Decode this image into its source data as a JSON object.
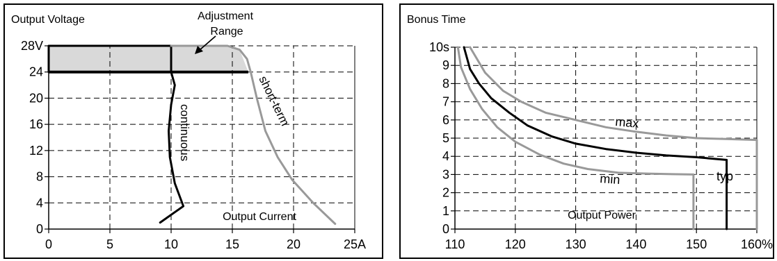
{
  "chart_data": [
    {
      "type": "line",
      "title": "Output Voltage",
      "xlabel": "Output Current",
      "ylabel": "Output Voltage",
      "xlim": [
        0,
        25
      ],
      "ylim": [
        0,
        28
      ],
      "x_ticks": [
        0,
        5,
        10,
        15,
        20,
        25
      ],
      "x_tick_labels": [
        "0",
        "5",
        "10",
        "15",
        "20",
        "25A"
      ],
      "y_ticks": [
        0,
        4,
        8,
        12,
        16,
        20,
        24,
        28
      ],
      "y_tick_labels": [
        "0",
        "4",
        "8",
        "12",
        "16",
        "20",
        "24",
        "28V"
      ],
      "grid": true,
      "annotations": [
        "Adjustment",
        "Range"
      ],
      "series": [
        {
          "name": "continuous",
          "color": "#000000",
          "points": [
            [
              0,
              24
            ],
            [
              10,
              24
            ],
            [
              10,
              28
            ],
            [
              0,
              28
            ],
            [
              0,
              24
            ],
            [
              10,
              24
            ],
            [
              10.3,
              22
            ],
            [
              10.0,
              19
            ],
            [
              9.8,
              15
            ],
            [
              9.9,
              11
            ],
            [
              10.3,
              7
            ],
            [
              11.0,
              3.5
            ],
            [
              9.1,
              1.0
            ]
          ]
        },
        {
          "name": "short-term",
          "color": "#999999",
          "points": [
            [
              10,
              28
            ],
            [
              14.6,
              28
            ],
            [
              15.6,
              27.4
            ],
            [
              16.2,
              26
            ],
            [
              16.5,
              24
            ],
            [
              17.0,
              20
            ],
            [
              17.7,
              15
            ],
            [
              18.7,
              11
            ],
            [
              19.9,
              7.5
            ],
            [
              21.6,
              4
            ],
            [
              23.4,
              0.8
            ]
          ]
        }
      ],
      "shaded_region": {
        "name": "Adjustment Range",
        "color": "#d9d9d9",
        "y_range": [
          24,
          28
        ],
        "x_max": 16.3
      },
      "shaded_points": [
        [
          0,
          24
        ],
        [
          16.3,
          24
        ],
        [
          15.6,
          27.4
        ],
        [
          14.6,
          28
        ],
        [
          0,
          28
        ]
      ],
      "bold_line": {
        "points": [
          [
            0,
            24
          ],
          [
            16.3,
            24
          ]
        ]
      }
    },
    {
      "type": "line",
      "title": "Bonus Time",
      "xlabel": "Output Power",
      "ylabel": "Bonus Time",
      "xlim": [
        110,
        160
      ],
      "ylim": [
        0,
        10
      ],
      "x_ticks": [
        110,
        120,
        130,
        140,
        150,
        160
      ],
      "x_tick_labels": [
        "110",
        "120",
        "130",
        "140",
        "150",
        "160%"
      ],
      "y_ticks": [
        0,
        1,
        2,
        3,
        4,
        5,
        6,
        7,
        8,
        9,
        10
      ],
      "y_tick_labels": [
        "0",
        "1",
        "2",
        "3",
        "4",
        "5",
        "6",
        "7",
        "8",
        "9",
        "10s"
      ],
      "grid": true,
      "series": [
        {
          "name": "max",
          "color": "#999999",
          "points": [
            [
              112.5,
              10
            ],
            [
              115,
              8.6
            ],
            [
              118,
              7.6
            ],
            [
              121,
              7.0
            ],
            [
              125,
              6.4
            ],
            [
              130,
              6.0
            ],
            [
              135,
              5.6
            ],
            [
              140,
              5.35
            ],
            [
              145,
              5.15
            ],
            [
              150,
              5.0
            ],
            [
              155,
              4.95
            ],
            [
              160,
              4.9
            ],
            [
              160,
              0
            ]
          ]
        },
        {
          "name": "typ",
          "color": "#000000",
          "points": [
            [
              111.5,
              10
            ],
            [
              112.5,
              8.8
            ],
            [
              114,
              8.0
            ],
            [
              116,
              7.2
            ],
            [
              119,
              6.4
            ],
            [
              122,
              5.7
            ],
            [
              126,
              5.1
            ],
            [
              130,
              4.7
            ],
            [
              135,
              4.4
            ],
            [
              140,
              4.2
            ],
            [
              145,
              4.05
            ],
            [
              150,
              3.95
            ],
            [
              155,
              3.8
            ],
            [
              155,
              0
            ]
          ]
        },
        {
          "name": "min",
          "color": "#999999",
          "points": [
            [
              110.5,
              10
            ],
            [
              111,
              8.9
            ],
            [
              112.5,
              7.7
            ],
            [
              114.5,
              6.6
            ],
            [
              117,
              5.6
            ],
            [
              120,
              4.8
            ],
            [
              124,
              4.1
            ],
            [
              128,
              3.6
            ],
            [
              132,
              3.3
            ],
            [
              137,
              3.1
            ],
            [
              142,
              3.05
            ],
            [
              146,
              3.02
            ],
            [
              149.5,
              3.0
            ],
            [
              149.5,
              0
            ]
          ]
        }
      ]
    }
  ]
}
